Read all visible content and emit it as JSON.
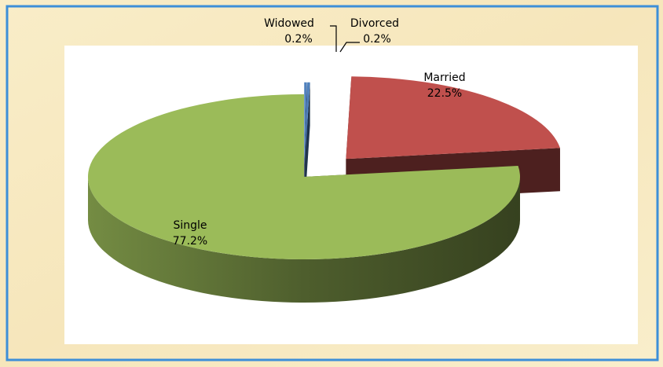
{
  "chart_data": {
    "type": "pie",
    "categories": [
      "Widowed",
      "Divorced",
      "Married",
      "Single"
    ],
    "values": [
      0.2,
      0.2,
      22.5,
      77.2
    ],
    "value_labels": [
      "0.2%",
      "0.2%",
      "22.5%",
      "77.2%"
    ],
    "colors": [
      "#4f81bd",
      "#4f81bd",
      "#c0504d",
      "#9bbb59"
    ]
  }
}
